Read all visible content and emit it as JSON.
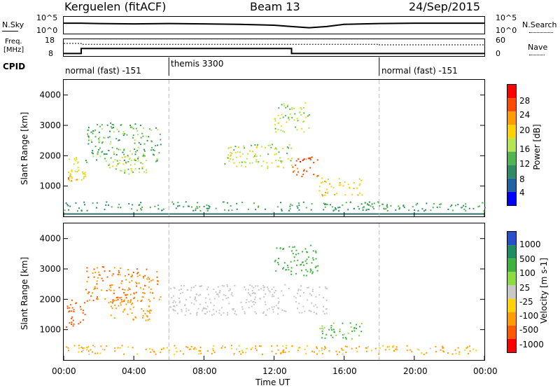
{
  "header": {
    "station": "Kerguelen (fitACF)",
    "beam": "Beam 13",
    "date": "24/Sep/2015"
  },
  "noise_panel": {
    "left_label": "N.Sky",
    "right_label": "N.Search",
    "left_ticks": [
      "10^5",
      "10^0"
    ],
    "right_ticks": [
      "10^5",
      "10^0"
    ]
  },
  "freq_panel": {
    "left_label_1": "Freq.",
    "left_label_2": "[MHz]",
    "right_label": "Nave",
    "left_ticks": [
      "18",
      "8"
    ],
    "right_ticks": [
      "60",
      "0"
    ]
  },
  "cpid": {
    "label": "CPID",
    "segments": [
      {
        "start_hour": 0,
        "label": "normal (fast) -151"
      },
      {
        "start_hour": 6,
        "label": "themis 3300"
      },
      {
        "start_hour": 18,
        "label": "normal (fast) -151"
      }
    ]
  },
  "power_panel": {
    "ylabel": "Slant Range [km]",
    "colorbar_label": "Power [dB]",
    "colorbar_ticks": [
      "28",
      "24",
      "20",
      "16",
      "12",
      "8",
      "4"
    ],
    "colorbar_colors": [
      "#ff0000",
      "#ff4a00",
      "#ff9c00",
      "#ffd200",
      "#b4e650",
      "#50b450",
      "#2d8c64",
      "#1e64a0",
      "#0000ff"
    ]
  },
  "velocity_panel": {
    "ylabel": "Slant Range [km]",
    "colorbar_label": "Velocity [m s-1]",
    "colorbar_ticks": [
      "1000",
      "500",
      "100",
      "25",
      "-25",
      "-100",
      "-500",
      "-1000"
    ],
    "colorbar_colors": [
      "#2850c8",
      "#1e8c64",
      "#3cb43c",
      "#8cdc3c",
      "#c8c8c8",
      "#ffd200",
      "#ff9c00",
      "#ff5a00",
      "#ff0000"
    ]
  },
  "x_axis": {
    "label": "Time UT",
    "ticks": [
      "00:00",
      "04:00",
      "08:00",
      "12:00",
      "16:00",
      "20:00",
      "00:00"
    ]
  },
  "chart_data": {
    "type": "heatmap",
    "x_unit": "hour UT",
    "xlim": [
      0,
      24
    ],
    "ylim": [
      0,
      4500
    ],
    "y_ticks": [
      1000,
      2000,
      3000,
      4000
    ],
    "cpid_boundaries_hours": [
      6,
      18
    ],
    "noise_sky_trace": [
      [
        0,
        0.62
      ],
      [
        1,
        0.62
      ],
      [
        2,
        0.6
      ],
      [
        4,
        0.58
      ],
      [
        6,
        0.6
      ],
      [
        8,
        0.58
      ],
      [
        10,
        0.55
      ],
      [
        12,
        0.5
      ],
      [
        13,
        0.42
      ],
      [
        14,
        0.35
      ],
      [
        15,
        0.42
      ],
      [
        16,
        0.55
      ],
      [
        18,
        0.6
      ],
      [
        20,
        0.62
      ],
      [
        22,
        0.62
      ],
      [
        24,
        0.62
      ]
    ],
    "freq_trace_mhz": [
      [
        0,
        9.5
      ],
      [
        1,
        9.5
      ],
      [
        1,
        12.5
      ],
      [
        13,
        12.5
      ],
      [
        13,
        9.5
      ],
      [
        24,
        9.5
      ]
    ],
    "nave_trace": [
      [
        0,
        45
      ],
      [
        1,
        45
      ],
      [
        1,
        42
      ],
      [
        18,
        42
      ],
      [
        18,
        40
      ],
      [
        24,
        40
      ]
    ],
    "power_blobs": [
      {
        "t0": 0.0,
        "t1": 1.2,
        "r0": 1200,
        "r1": 2000,
        "value": 16
      },
      {
        "t0": 0.0,
        "t1": 1.0,
        "r0": 1100,
        "r1": 1400,
        "value": 20
      },
      {
        "t0": 1.2,
        "t1": 5.5,
        "r0": 1800,
        "r1": 3100,
        "value": 8
      },
      {
        "t0": 2.5,
        "t1": 5.0,
        "r0": 1400,
        "r1": 2000,
        "value": 12
      },
      {
        "t0": 9.0,
        "t1": 13.0,
        "r0": 1600,
        "r1": 2400,
        "value": 12
      },
      {
        "t0": 12.0,
        "t1": 14.0,
        "r0": 2800,
        "r1": 3800,
        "value": 12
      },
      {
        "t0": 13.0,
        "t1": 14.5,
        "r0": 1300,
        "r1": 2000,
        "value": 24
      },
      {
        "t0": 14.5,
        "t1": 17.0,
        "r0": 700,
        "r1": 1300,
        "value": 16
      },
      {
        "t0": 0.0,
        "t1": 24.0,
        "r0": 200,
        "r1": 500,
        "value": 6
      }
    ],
    "velocity_blobs": [
      {
        "t0": 0.0,
        "t1": 1.2,
        "r0": 1100,
        "r1": 2000,
        "value": -500
      },
      {
        "t0": 1.2,
        "t1": 5.5,
        "r0": 1900,
        "r1": 3100,
        "value": -300
      },
      {
        "t0": 2.5,
        "t1": 5.0,
        "r0": 1300,
        "r1": 2000,
        "value": -200
      },
      {
        "t0": 6.0,
        "t1": 15.0,
        "r0": 1500,
        "r1": 2500,
        "value": 0
      },
      {
        "t0": 12.0,
        "t1": 14.5,
        "r0": 2800,
        "r1": 3800,
        "value": 200
      },
      {
        "t0": 14.5,
        "t1": 17.0,
        "r0": 700,
        "r1": 1300,
        "value": 100
      },
      {
        "t0": 0.0,
        "t1": 24.0,
        "r0": 200,
        "r1": 500,
        "value": -100
      }
    ]
  }
}
